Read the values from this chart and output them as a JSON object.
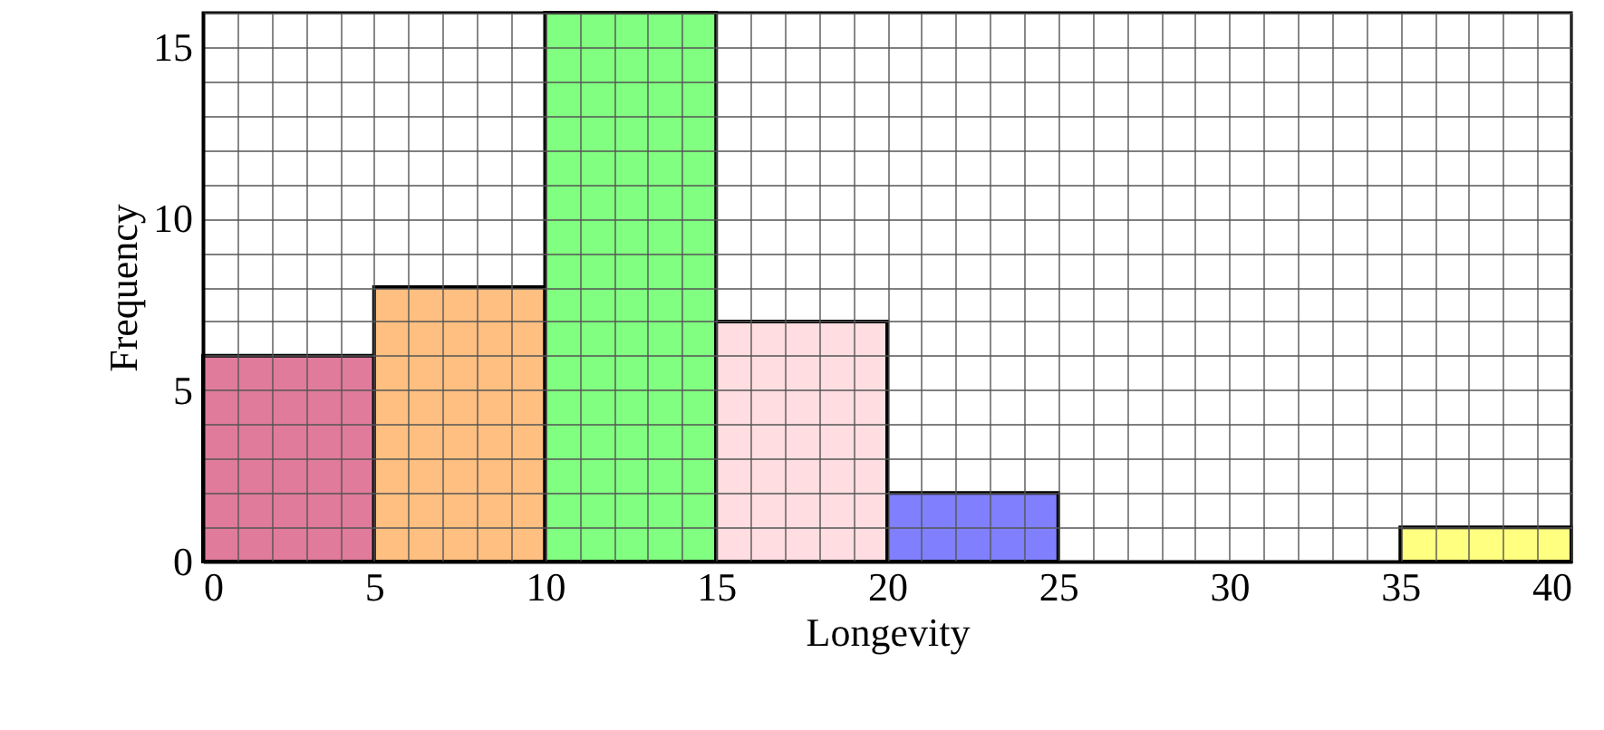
{
  "chart_data": {
    "type": "histogram",
    "xlabel": "Longevity",
    "ylabel": "Frequency",
    "bins": [
      0,
      5,
      10,
      15,
      20,
      25,
      30,
      35,
      40
    ],
    "values": [
      6,
      8,
      16,
      7,
      2,
      0,
      0,
      1
    ],
    "colors": [
      "#e07b9b",
      "#ffbf80",
      "#80ff80",
      "#ffdde0",
      "#8080ff",
      null,
      null,
      "#ffff80"
    ],
    "xlim": [
      0,
      40
    ],
    "ylim": [
      0,
      16
    ],
    "xticks": [
      0,
      {
        "value": 1,
        "label": null
      },
      {
        "value": 2,
        "label": null
      },
      {
        "value": 3,
        "label": null
      },
      {
        "value": 4,
        "label": null
      },
      5,
      {
        "value": 6,
        "label": null
      },
      {
        "value": 7,
        "label": null
      },
      {
        "value": 8,
        "label": null
      },
      {
        "value": 9,
        "label": null
      },
      10,
      {
        "value": 11,
        "label": null
      },
      {
        "value": 12,
        "label": null
      },
      {
        "value": 13,
        "label": null
      },
      {
        "value": 14,
        "label": null
      },
      15,
      {
        "value": 16,
        "label": null
      },
      {
        "value": 17,
        "label": null
      },
      {
        "value": 18,
        "label": null
      },
      {
        "value": 19,
        "label": null
      },
      20,
      {
        "value": 21,
        "label": null
      },
      {
        "value": 22,
        "label": null
      },
      {
        "value": 23,
        "label": null
      },
      {
        "value": 24,
        "label": null
      },
      25,
      {
        "value": 26,
        "label": null
      },
      {
        "value": 27,
        "label": null
      },
      {
        "value": 28,
        "label": null
      },
      {
        "value": 29,
        "label": null
      },
      30,
      {
        "value": 31,
        "label": null
      },
      {
        "value": 32,
        "label": null
      },
      {
        "value": 33,
        "label": null
      },
      {
        "value": 34,
        "label": null
      },
      35,
      {
        "value": 36,
        "label": null
      },
      {
        "value": 37,
        "label": null
      },
      {
        "value": 38,
        "label": null
      },
      {
        "value": 39,
        "label": null
      },
      40
    ],
    "yticks": [
      0,
      {
        "value": 1,
        "label": null
      },
      {
        "value": 2,
        "label": null
      },
      {
        "value": 3,
        "label": null
      },
      {
        "value": 4,
        "label": null
      },
      5,
      {
        "value": 6,
        "label": null
      },
      {
        "value": 7,
        "label": null
      },
      {
        "value": 8,
        "label": null
      },
      {
        "value": 9,
        "label": null
      },
      10,
      {
        "value": 11,
        "label": null
      },
      {
        "value": 12,
        "label": null
      },
      {
        "value": 13,
        "label": null
      },
      {
        "value": 14,
        "label": null
      },
      15,
      {
        "value": 16,
        "label": null
      }
    ],
    "grid": true
  }
}
